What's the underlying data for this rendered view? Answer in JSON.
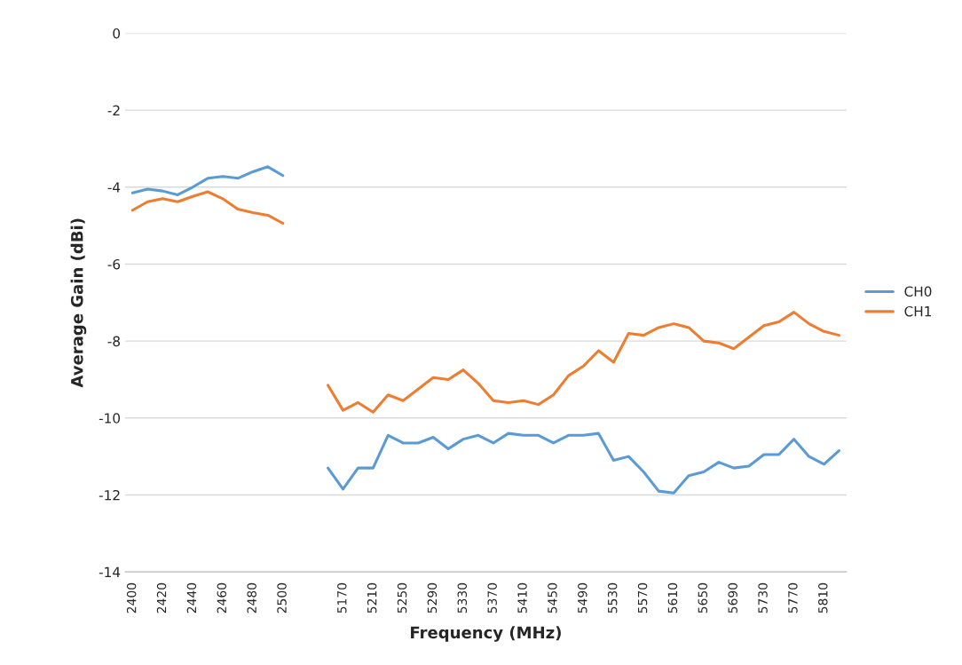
{
  "chart_data": {
    "type": "line",
    "xlabel": "Frequency (MHz)",
    "ylabel": "Average Gain (dBi)",
    "categories": [
      "2400",
      null,
      "2420",
      null,
      "2440",
      null,
      "2460",
      null,
      "2480",
      null,
      "2500",
      null,
      null,
      null,
      "5170",
      null,
      "5210",
      null,
      "5250",
      null,
      "5290",
      null,
      "5330",
      null,
      "5370",
      null,
      "5410",
      null,
      "5450",
      null,
      "5490",
      null,
      "5530",
      null,
      "5570",
      null,
      "5610",
      null,
      "5650",
      null,
      "5690",
      null,
      "5730",
      null,
      "5770",
      null,
      "5810",
      null
    ],
    "series": [
      {
        "name": "CH0",
        "color": "#5b9bd5",
        "values": [
          -4.15,
          -4.05,
          -4.1,
          -4.2,
          -4.0,
          -3.77,
          -3.72,
          -3.77,
          -3.6,
          -3.47,
          -3.7,
          null,
          null,
          -11.3,
          -11.85,
          -11.3,
          -11.3,
          -10.45,
          -10.65,
          -10.65,
          -10.5,
          -10.8,
          -10.55,
          -10.45,
          -10.65,
          -10.4,
          -10.45,
          -10.45,
          -10.65,
          -10.45,
          -10.45,
          -10.4,
          -11.1,
          -11.0,
          -11.4,
          -11.9,
          -11.95,
          -11.5,
          -11.4,
          -11.15,
          -11.3,
          -11.25,
          -10.95,
          -10.95,
          -10.55,
          -11.0,
          -11.2,
          -10.85
        ]
      },
      {
        "name": "CH1",
        "color": "#ed7d31",
        "values": [
          -4.6,
          -4.38,
          -4.3,
          -4.38,
          -4.24,
          -4.12,
          -4.3,
          -4.57,
          -4.66,
          -4.73,
          -4.94,
          null,
          null,
          -9.15,
          -9.8,
          -9.6,
          -9.85,
          -9.4,
          -9.55,
          -9.25,
          -8.95,
          -9.0,
          -8.75,
          -9.1,
          -9.55,
          -9.6,
          -9.55,
          -9.65,
          -9.4,
          -8.9,
          -8.65,
          -8.25,
          -8.55,
          -7.8,
          -7.85,
          -7.65,
          -7.55,
          -7.65,
          -8.0,
          -8.05,
          -8.2,
          -7.9,
          -7.6,
          -7.5,
          -7.25,
          -7.55,
          -7.75,
          -7.85
        ]
      }
    ],
    "ylim": [
      -14,
      0
    ],
    "yticks": [
      -14,
      -12,
      -10,
      -8,
      -6,
      -4,
      -2,
      0
    ],
    "grid": "y",
    "legend": "right",
    "marker": "none",
    "line_style": "solid"
  }
}
